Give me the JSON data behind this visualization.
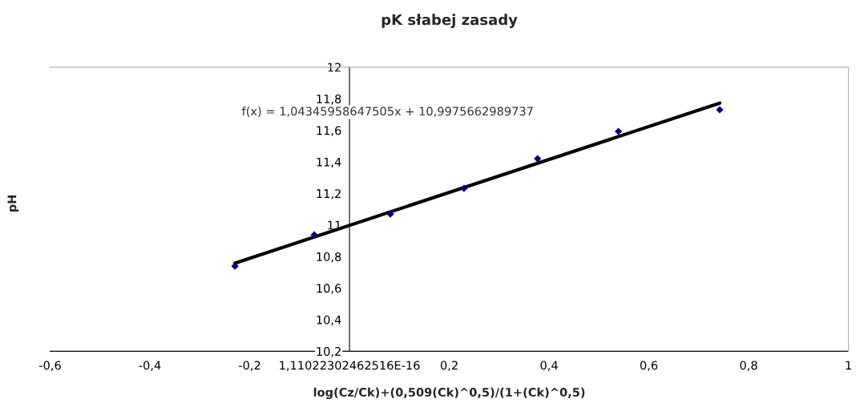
{
  "chart_data": {
    "type": "scatter",
    "title": "pK słabej zasady",
    "xlabel": "log(Cz/Ck)+(0,509(Ck)^0,5)/(1+(Ck)^0,5)",
    "ylabel": "pH",
    "annotations": [
      "f(x) = 1,04345958647505x + 10,9975662989737"
    ],
    "series": [
      {
        "type": "scatter",
        "color": "#000080",
        "marker": "diamond",
        "x": [
          -0.2295,
          -0.0706,
          0.0819,
          0.2295,
          0.377,
          0.539,
          0.742
        ],
        "values": [
          10.739,
          10.937,
          11.069,
          11.232,
          11.42,
          11.593,
          11.73
        ]
      },
      {
        "type": "line",
        "color": "#000000",
        "marker": "none",
        "line_style": "solid",
        "x": [
          -0.2295,
          0.742
        ],
        "values": [
          10.758,
          11.772
        ]
      }
    ],
    "xlim": [
      -0.6,
      1
    ],
    "ylim": [
      10.2,
      12
    ],
    "xticks": [
      {
        "value": -0.6,
        "label": "-0,6"
      },
      {
        "value": -0.4,
        "label": "-0,4"
      },
      {
        "value": -0.2,
        "label": "-0,2"
      },
      {
        "value": 0,
        "label": "1,11022302462516E-16"
      },
      {
        "value": 0.2,
        "label": "0,2"
      },
      {
        "value": 0.4,
        "label": "0,4"
      },
      {
        "value": 0.6,
        "label": "0,6"
      },
      {
        "value": 0.8,
        "label": "0,8"
      },
      {
        "value": 1,
        "label": "1"
      }
    ],
    "yticks": [
      {
        "value": 10.2,
        "label": "10,2"
      },
      {
        "value": 10.4,
        "label": "10,4"
      },
      {
        "value": 10.6,
        "label": "10,6"
      },
      {
        "value": 10.8,
        "label": "10,8"
      },
      {
        "value": 11,
        "label": "11"
      },
      {
        "value": 11.2,
        "label": "11,2"
      },
      {
        "value": 11.4,
        "label": "11,4"
      },
      {
        "value": 11.6,
        "label": "11,6"
      },
      {
        "value": 11.8,
        "label": "11,8"
      },
      {
        "value": 12,
        "label": "12"
      }
    ],
    "grid": false,
    "legend": false
  }
}
